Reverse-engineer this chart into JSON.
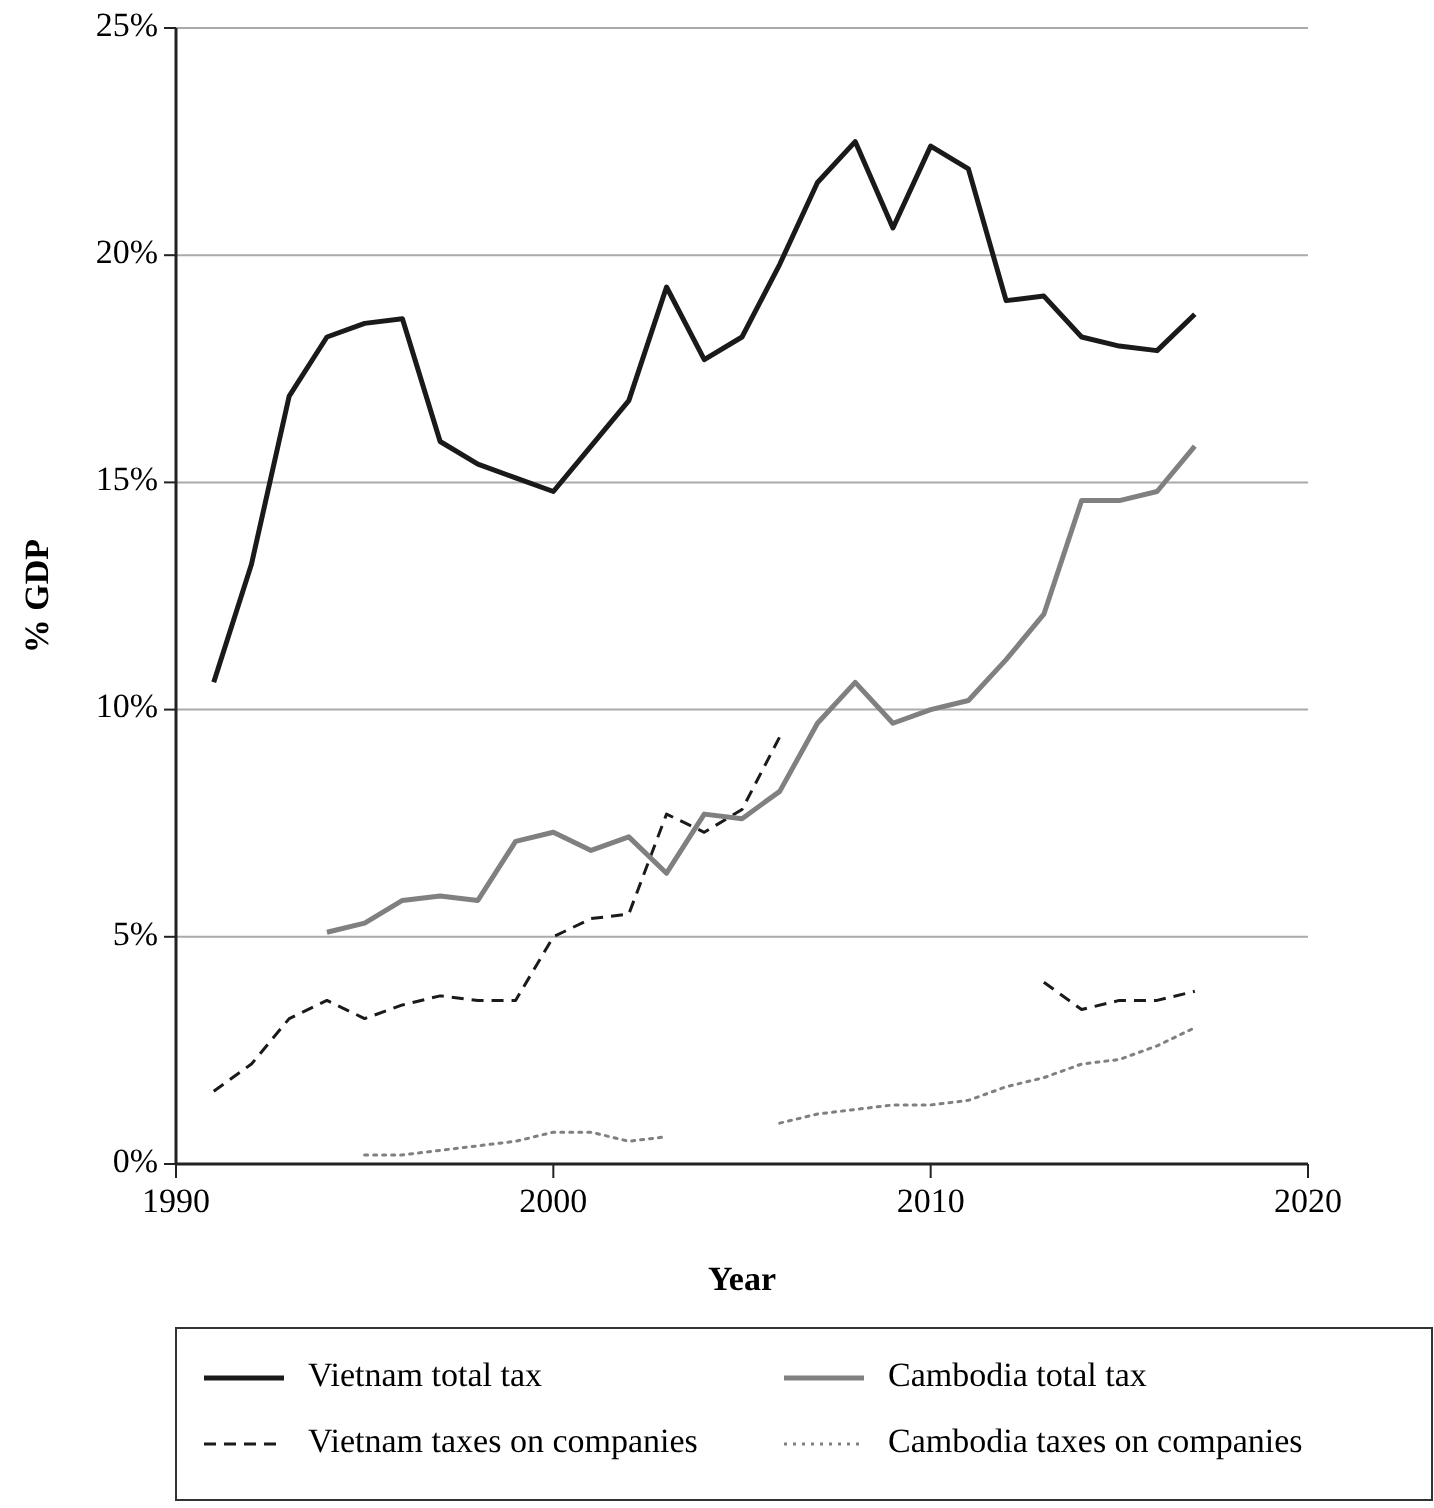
{
  "chart_data": {
    "type": "line",
    "xlabel": "Year",
    "ylabel": "% GDP",
    "x": [
      1991,
      1992,
      1993,
      1994,
      1995,
      1996,
      1997,
      1998,
      1999,
      2000,
      2001,
      2002,
      2003,
      2004,
      2005,
      2006,
      2007,
      2008,
      2009,
      2010,
      2011,
      2012,
      2013,
      2014,
      2015,
      2016,
      2017
    ],
    "series": [
      {
        "name": "Vietnam total tax",
        "color": "#1a1a1a",
        "line_style": "solid",
        "values": [
          10.6,
          13.2,
          16.9,
          18.2,
          18.5,
          18.6,
          15.9,
          15.4,
          15.1,
          14.8,
          15.8,
          16.8,
          19.3,
          17.7,
          18.2,
          19.8,
          21.6,
          22.5,
          20.6,
          22.4,
          21.9,
          19.0,
          19.1,
          18.2,
          18.0,
          17.9,
          18.7
        ]
      },
      {
        "name": "Vietnam taxes on companies",
        "color": "#1a1a1a",
        "line_style": "dashed",
        "values": [
          1.6,
          2.2,
          3.2,
          3.6,
          3.2,
          3.5,
          3.7,
          3.6,
          3.6,
          5.0,
          5.4,
          5.5,
          7.7,
          7.3,
          7.8,
          9.4,
          null,
          null,
          null,
          null,
          null,
          null,
          4.0,
          3.4,
          3.6,
          3.6,
          3.8
        ]
      },
      {
        "name": "Cambodia total tax",
        "color": "#808080",
        "line_style": "solid",
        "values": [
          null,
          null,
          null,
          5.1,
          5.3,
          5.8,
          5.9,
          5.8,
          7.1,
          7.3,
          6.9,
          7.2,
          6.4,
          7.7,
          7.6,
          8.2,
          9.7,
          10.6,
          9.7,
          10.0,
          10.2,
          11.1,
          12.1,
          14.6,
          14.6,
          14.8,
          15.8
        ]
      },
      {
        "name": "Cambodia taxes on companies",
        "color": "#808080",
        "line_style": "dotted",
        "values": [
          null,
          null,
          null,
          null,
          0.2,
          0.2,
          0.3,
          0.4,
          0.5,
          0.7,
          0.7,
          0.5,
          0.6,
          null,
          null,
          0.9,
          1.1,
          1.2,
          1.3,
          1.3,
          1.4,
          1.7,
          1.9,
          2.2,
          2.3,
          2.6,
          3.0
        ]
      }
    ],
    "xlim": [
      1990,
      2020
    ],
    "xticks": [
      1990,
      2000,
      2010,
      2020
    ],
    "ylim": [
      0,
      25
    ],
    "yticks": [
      {
        "value": 0,
        "label": "0%"
      },
      {
        "value": 5,
        "label": "5%"
      },
      {
        "value": 10,
        "label": "10%"
      },
      {
        "value": 15,
        "label": "15%"
      },
      {
        "value": 20,
        "label": "20%"
      },
      {
        "value": 25,
        "label": "25%"
      }
    ],
    "grid": "y",
    "legend": "bottom",
    "marker": "none"
  }
}
